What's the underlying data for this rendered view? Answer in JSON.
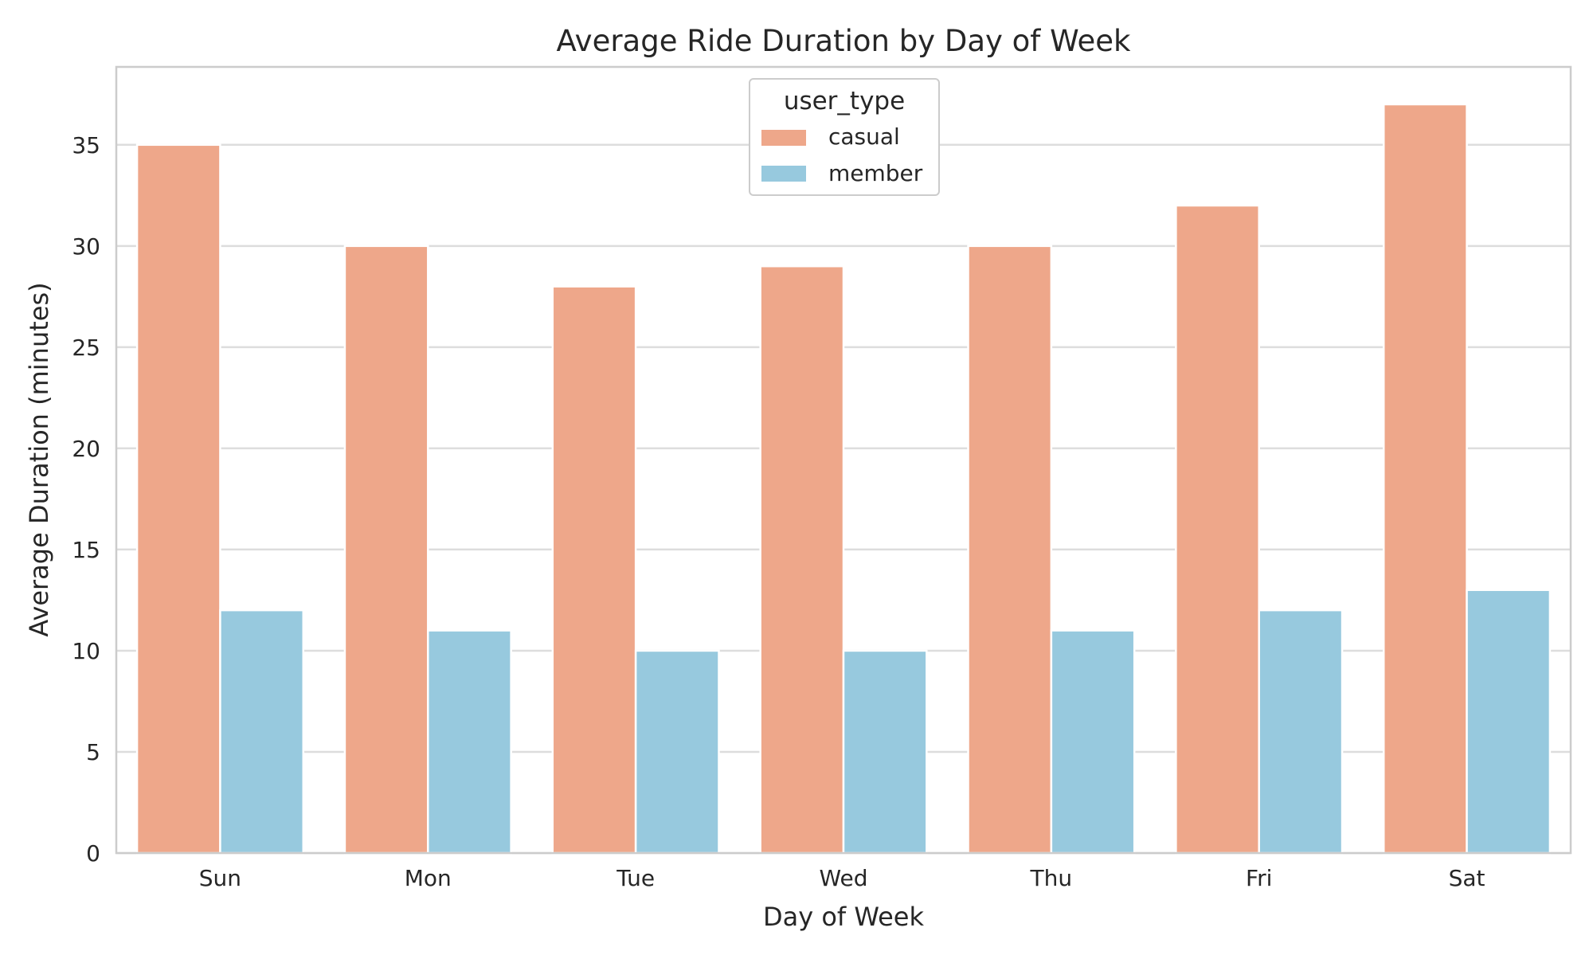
{
  "chart_data": {
    "type": "bar",
    "title": "Average Ride Duration by Day of Week",
    "xlabel": "Day of Week",
    "ylabel": "Average Duration (minutes)",
    "categories": [
      "Sun",
      "Mon",
      "Tue",
      "Wed",
      "Thu",
      "Fri",
      "Sat"
    ],
    "series": [
      {
        "name": "casual",
        "color": "#EEA78A",
        "values": [
          35,
          30,
          28,
          29,
          30,
          32,
          37
        ]
      },
      {
        "name": "member",
        "color": "#97C9DE",
        "values": [
          12,
          11,
          10,
          10,
          11,
          12,
          13
        ]
      }
    ],
    "ylim": [
      0,
      38.85
    ],
    "yticks": [
      0,
      5,
      10,
      15,
      20,
      25,
      30,
      35
    ],
    "grid": true,
    "legend": {
      "title": "user_type",
      "placement": "upper-center"
    }
  }
}
